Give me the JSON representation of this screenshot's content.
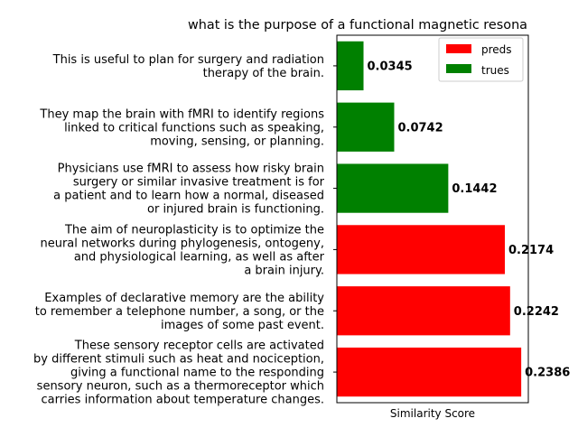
{
  "chart_data": {
    "type": "bar",
    "orientation": "horizontal",
    "title": "what is the purpose of a functional magnetic resona",
    "xlabel": "Similarity Score",
    "ylabel": "",
    "xlim": [
      0,
      0.2478
    ],
    "x_ticks_visible": false,
    "grid": false,
    "legend_position": "top-right",
    "legend": [
      {
        "label": "preds",
        "color": "#ff0000"
      },
      {
        "label": "trues",
        "color": "#008000"
      }
    ],
    "bars": [
      {
        "lines": [
          "This is useful to plan for surgery and radiation",
          "therapy of the brain."
        ],
        "value": 0.0345,
        "value_label": "0.0345",
        "group": "trues",
        "color": "#008000"
      },
      {
        "lines": [
          "They map the brain with fMRI to identify regions",
          "linked to critical functions such as speaking,",
          "moving, sensing, or planning."
        ],
        "value": 0.0742,
        "value_label": "0.0742",
        "group": "trues",
        "color": "#008000"
      },
      {
        "lines": [
          "Physicians use fMRI to assess how risky brain",
          "surgery or similar invasive treatment is for",
          "a patient and to learn how a normal, diseased",
          "or injured brain is functioning."
        ],
        "value": 0.1442,
        "value_label": "0.1442",
        "group": "trues",
        "color": "#008000"
      },
      {
        "lines": [
          "The aim of neuroplasticity is to optimize the",
          "neural networks during phylogenesis, ontogeny,",
          "and physiological learning, as well as after",
          "a brain injury."
        ],
        "value": 0.2174,
        "value_label": "0.2174",
        "group": "preds",
        "color": "#ff0000"
      },
      {
        "lines": [
          "Examples of declarative memory are the ability",
          "to remember a telephone number, a song, or the",
          "images of some past event."
        ],
        "value": 0.2242,
        "value_label": "0.2242",
        "group": "preds",
        "color": "#ff0000"
      },
      {
        "lines": [
          "These sensory receptor cells are activated",
          "by different stimuli such as heat and nociception,",
          "giving a functional name to the responding",
          "sensory neuron, such as a thermoreceptor which",
          "carries information about temperature changes."
        ],
        "value": 0.2386,
        "value_label": "0.2386",
        "group": "preds",
        "color": "#ff0000"
      }
    ]
  }
}
